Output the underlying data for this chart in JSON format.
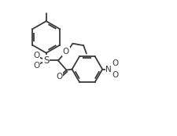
{
  "bg_color": "#ffffff",
  "line_color": "#3a3a3a",
  "lw": 1.3,
  "fig_width": 2.25,
  "fig_height": 1.74,
  "dpi": 100,
  "xlim": [
    0.0,
    9.5
  ],
  "ylim": [
    0.5,
    9.0
  ]
}
